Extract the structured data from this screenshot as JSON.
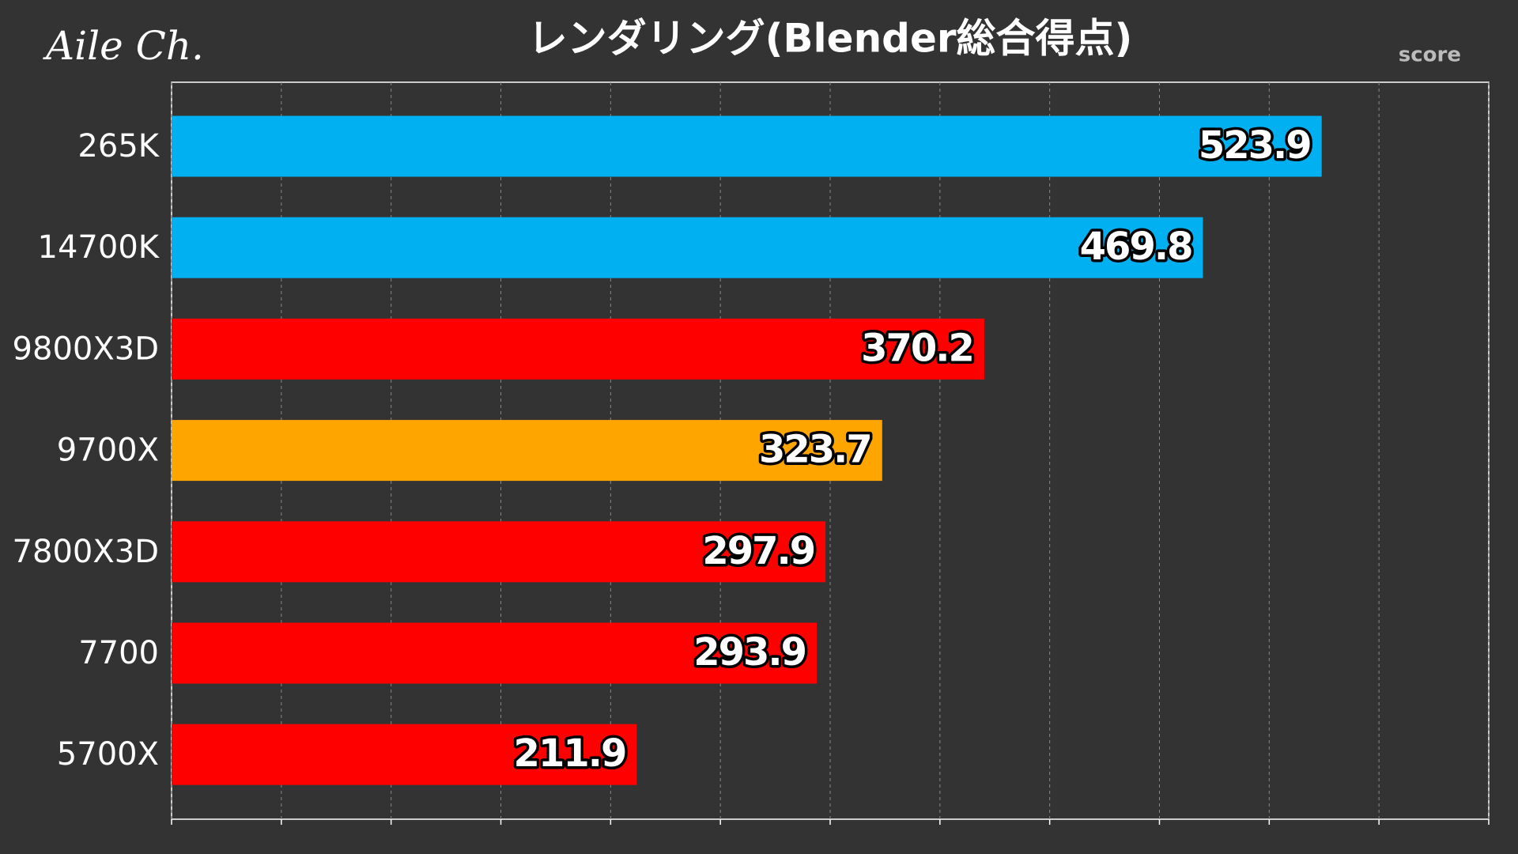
{
  "chart_data": {
    "type": "bar",
    "orientation": "horizontal",
    "title": "レンダリング(Blender総合得点)",
    "watermark": "Aile Ch.",
    "xlabel": "score",
    "categories": [
      "265K",
      "14700K",
      "9800X3D",
      "9700X",
      "7800X3D",
      "7700",
      "5700X"
    ],
    "values": [
      523.9,
      469.8,
      370.2,
      323.7,
      297.9,
      293.9,
      211.9
    ],
    "colors": [
      "#00b0f0",
      "#00b0f0",
      "#ff0000",
      "#ffa500",
      "#ff0000",
      "#ff0000",
      "#ff0000"
    ],
    "xlim": [
      0,
      600
    ],
    "xticks": [
      0,
      50,
      100,
      150,
      200,
      250,
      300,
      350,
      400,
      450,
      500,
      550,
      600
    ],
    "grid": true
  }
}
